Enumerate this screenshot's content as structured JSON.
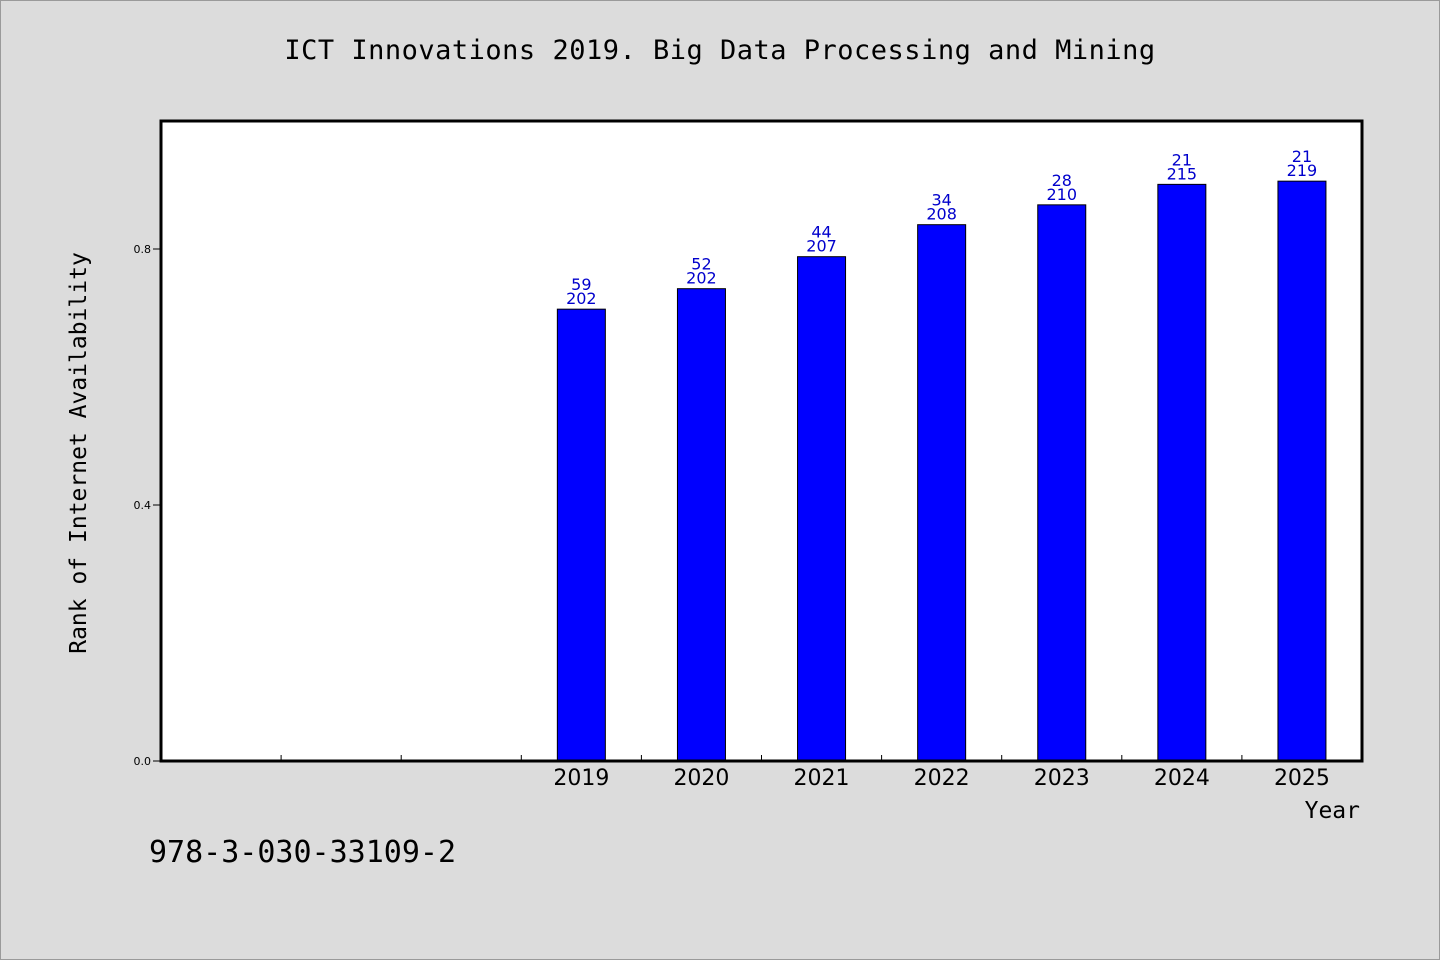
{
  "page": {
    "title": "ICT Innovations 2019. Big Data Processing and Mining",
    "isbn": "978-3-030-33109-2"
  },
  "colors": {
    "background": "#dcdcdc",
    "plot_background": "#ffffff",
    "bar_fill": "#0000ff",
    "label_color": "#0000cc"
  },
  "chart_data": {
    "type": "bar",
    "title": "ICT Innovations 2019. Big Data Processing and Mining",
    "xlabel": "Year",
    "ylabel": "Rank of Internet Availability",
    "ylim": [
      0,
      1.0
    ],
    "y_ticks": [
      "0.0",
      "0.4",
      "0.8"
    ],
    "x_range": [
      2015.5,
      2025.5
    ],
    "grid": false,
    "legend": "none",
    "categories": [
      "2019",
      "2020",
      "2021",
      "2022",
      "2023",
      "2024",
      "2025"
    ],
    "values": [
      0.706,
      0.738,
      0.788,
      0.838,
      0.869,
      0.901,
      0.906
    ],
    "top_labels": [
      "59",
      "52",
      "44",
      "34",
      "28",
      "21",
      "21"
    ],
    "bottom_labels": [
      "202",
      "202",
      "207",
      "208",
      "210",
      "215",
      "219"
    ]
  }
}
